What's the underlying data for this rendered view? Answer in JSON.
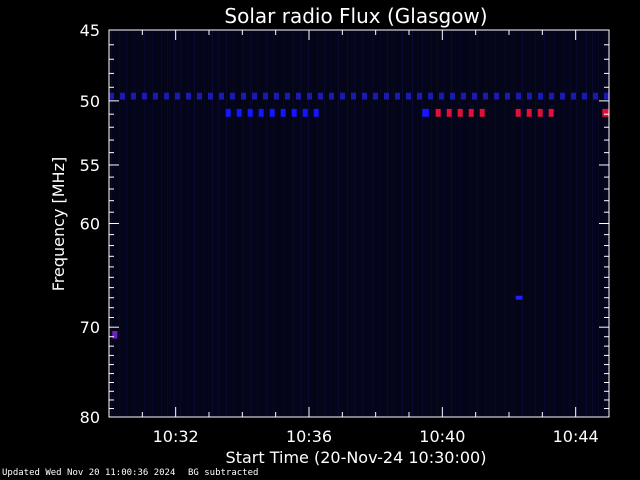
{
  "chart_data": {
    "type": "heatmap",
    "title": "Solar radio Flux (Glasgow)",
    "xlabel": "Start Time (20-Nov-24 10:30:00)",
    "ylabel": "Frequency [MHz]",
    "x_unit": "minutes since 10:30:00",
    "xlim": [
      0,
      15
    ],
    "ylim": [
      45,
      80
    ],
    "y_reversed": true,
    "y_scale": "log",
    "xticks": [
      {
        "value": 2,
        "label": "10:32"
      },
      {
        "value": 6,
        "label": "10:36"
      },
      {
        "value": 10,
        "label": "10:40"
      },
      {
        "value": 14,
        "label": "10:44"
      }
    ],
    "yticks": [
      {
        "value": 45,
        "label": "45"
      },
      {
        "value": 50,
        "label": "50"
      },
      {
        "value": 55,
        "label": "55"
      },
      {
        "value": 60,
        "label": "60"
      },
      {
        "value": 70,
        "label": "70"
      },
      {
        "value": 80,
        "label": "80"
      }
    ],
    "background_color": "#05051a",
    "features": [
      {
        "t_start": 0,
        "t_end": 15,
        "f_low": 49.4,
        "f_high": 49.9,
        "color": "#1a1ab0",
        "style": "dashed"
      },
      {
        "t_start": 3.5,
        "t_end": 6.4,
        "f_low": 50.6,
        "f_high": 51.2,
        "color": "#1515ff",
        "style": "dashed"
      },
      {
        "t_start": 9.4,
        "t_end": 9.6,
        "f_low": 50.6,
        "f_high": 51.2,
        "color": "#1515ff",
        "style": "solid"
      },
      {
        "t_start": 9.8,
        "t_end": 11.4,
        "f_low": 50.6,
        "f_high": 51.2,
        "color": "#e0103a",
        "style": "dashed"
      },
      {
        "t_start": 12.2,
        "t_end": 13.4,
        "f_low": 50.6,
        "f_high": 51.2,
        "color": "#e0103a",
        "style": "dashed"
      },
      {
        "t_start": 14.8,
        "t_end": 15.0,
        "f_low": 50.6,
        "f_high": 51.2,
        "color": "#e0103a",
        "style": "solid"
      },
      {
        "t_start": 0.1,
        "t_end": 0.25,
        "f_low": 70.4,
        "f_high": 71.2,
        "color": "#7020c0",
        "style": "solid"
      },
      {
        "t_start": 12.2,
        "t_end": 12.4,
        "f_low": 66.8,
        "f_high": 67.2,
        "color": "#2020ff",
        "style": "solid"
      }
    ]
  },
  "footer": {
    "updated": "Updated Wed Nov 20 11:00:36 2024",
    "bg_note": "BG subtracted"
  }
}
